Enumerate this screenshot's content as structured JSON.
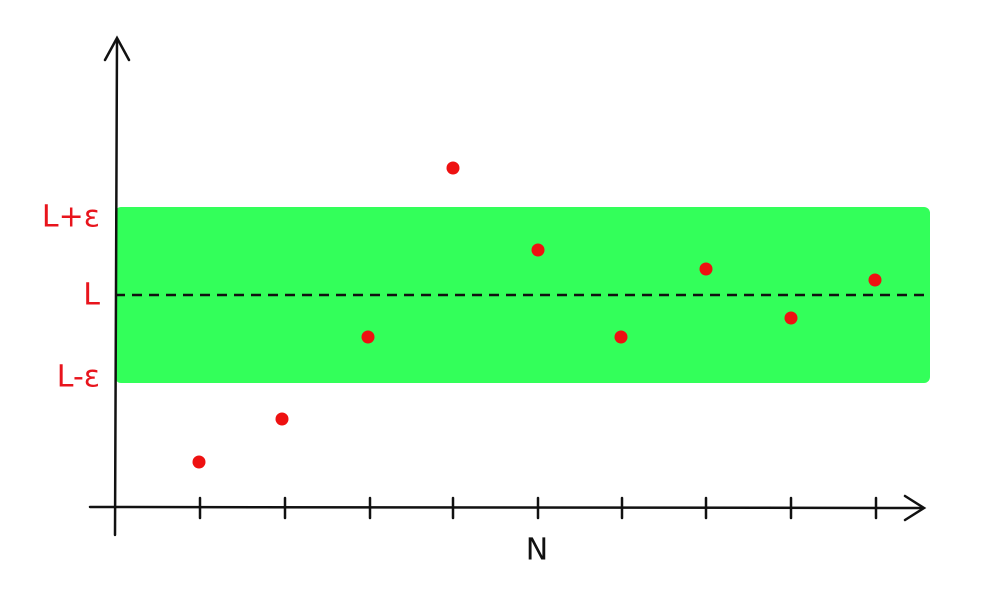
{
  "y_labels": {
    "upper": "L+ε",
    "limit": "L",
    "lower": "L-ε"
  },
  "x_axis_label": "N"
}
